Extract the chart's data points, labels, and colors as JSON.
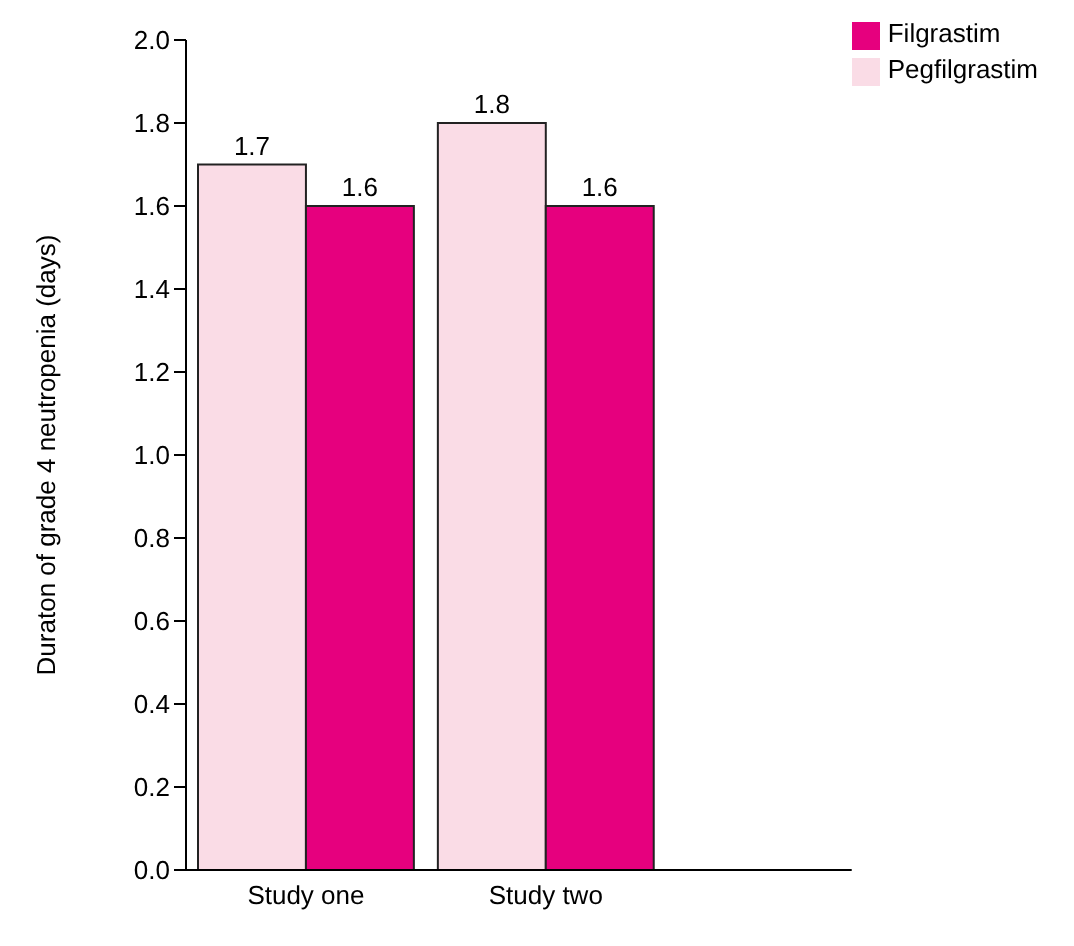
{
  "chart_data": {
    "type": "bar",
    "ylabel": "Duraton of grade 4 neutropenia (days)",
    "categories": [
      "Study one",
      "Study two"
    ],
    "series": [
      {
        "name": "Pegfilgrastim",
        "color": "#fadce6",
        "values": [
          1.7,
          1.8
        ]
      },
      {
        "name": "Filgrastim",
        "color": "#e6007e",
        "values": [
          1.6,
          1.6
        ]
      }
    ],
    "ylim": [
      0,
      2
    ],
    "yticks": [
      {
        "value": 0,
        "label": "0.0"
      },
      {
        "value": 0.2,
        "label": "0.2"
      },
      {
        "value": 0.4,
        "label": "0.4"
      },
      {
        "value": 0.6,
        "label": "0.6"
      },
      {
        "value": 0.8,
        "label": "0.8"
      },
      {
        "value": 1,
        "label": "1.0"
      },
      {
        "value": 1.2,
        "label": "1.2"
      },
      {
        "value": 1.4,
        "label": "1.4"
      },
      {
        "value": 1.6,
        "label": "1.6"
      },
      {
        "value": 1.8,
        "label": "1.8"
      },
      {
        "value": 2,
        "label": "2.0"
      }
    ],
    "data_labels": true,
    "legend": "top right",
    "grid": false
  }
}
